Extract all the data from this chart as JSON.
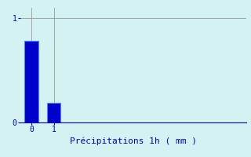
{
  "categories": [
    0,
    1
  ],
  "values": [
    0.78,
    0.19
  ],
  "bar_color": "#0000cc",
  "bar_edge_color": "#4488ff",
  "background_color": "#d4f2f2",
  "axis_background": "#d4f2f2",
  "xlabel": "Précipitations 1h ( mm )",
  "xlabel_color": "#0000cc",
  "xlabel_fontsize": 8,
  "tick_color": "#0000cc",
  "tick_fontsize": 7,
  "ylim": [
    0,
    1.1
  ],
  "xlim": [
    -0.5,
    9.5
  ],
  "yticks": [
    0,
    1
  ],
  "xticks": [
    0,
    1
  ],
  "grid_color": "#888888",
  "bar_width": 0.6
}
